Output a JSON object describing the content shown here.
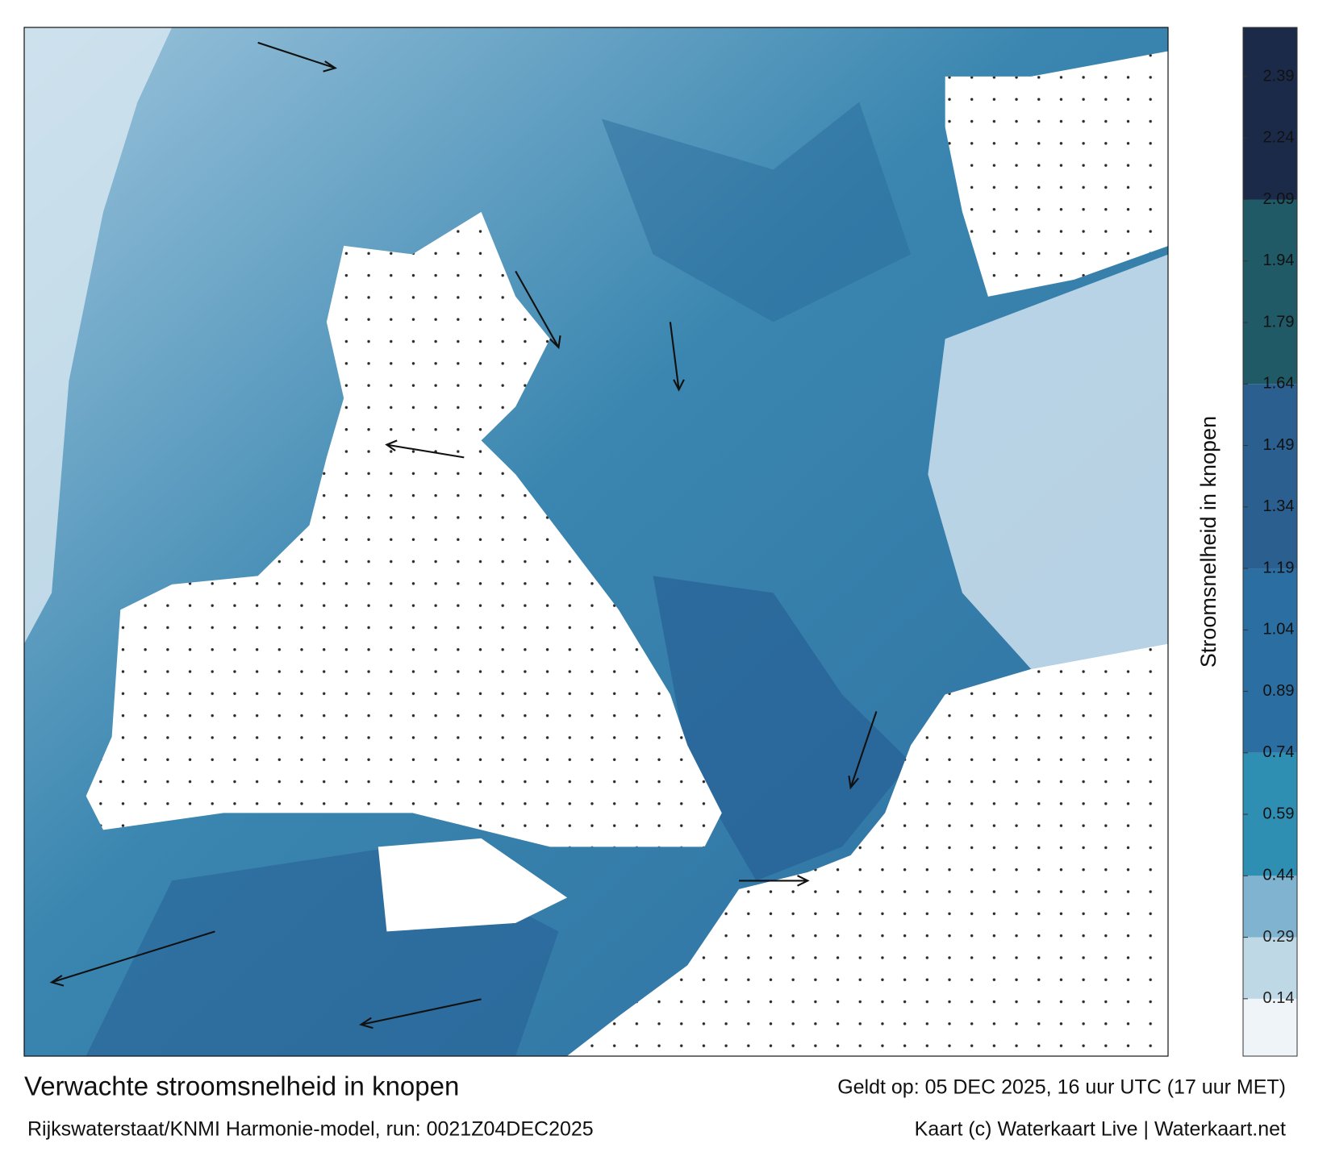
{
  "title": "Verwachte stroomsnelheid in knopen",
  "subtitle": "Rijkswaterstaat/KNMI Harmonie-model, run: 0021Z04DEC2025",
  "valid": "Geldt op: 05 DEC 2025, 16 uur UTC (17 uur MET)",
  "credit": "Kaart (c) Waterkaart Live | Waterkaart.net",
  "colorbar": {
    "label": "Stroomsnelheid in knopen",
    "lim": [
      0,
      2.51
    ],
    "ticks": [
      0.14,
      0.29,
      0.44,
      0.59,
      0.74,
      0.89,
      1.04,
      1.19,
      1.34,
      1.49,
      1.64,
      1.79,
      1.94,
      2.09,
      2.24,
      2.39
    ],
    "bands": [
      {
        "from": 0,
        "to": 0.14,
        "color": "#eef4f8"
      },
      {
        "from": 0.14,
        "to": 0.29,
        "color": "#bfd8e6"
      },
      {
        "from": 0.29,
        "to": 0.44,
        "color": "#7fb3cf"
      },
      {
        "from": 0.44,
        "to": 0.74,
        "color": "#2f8fb3"
      },
      {
        "from": 0.74,
        "to": 1.19,
        "color": "#2b6fa2"
      },
      {
        "from": 1.19,
        "to": 1.64,
        "color": "#2a5f8f"
      },
      {
        "from": 1.64,
        "to": 2.09,
        "color": "#1f5a66"
      },
      {
        "from": 2.09,
        "to": 2.51,
        "color": "#1c2a4a"
      }
    ]
  }
}
